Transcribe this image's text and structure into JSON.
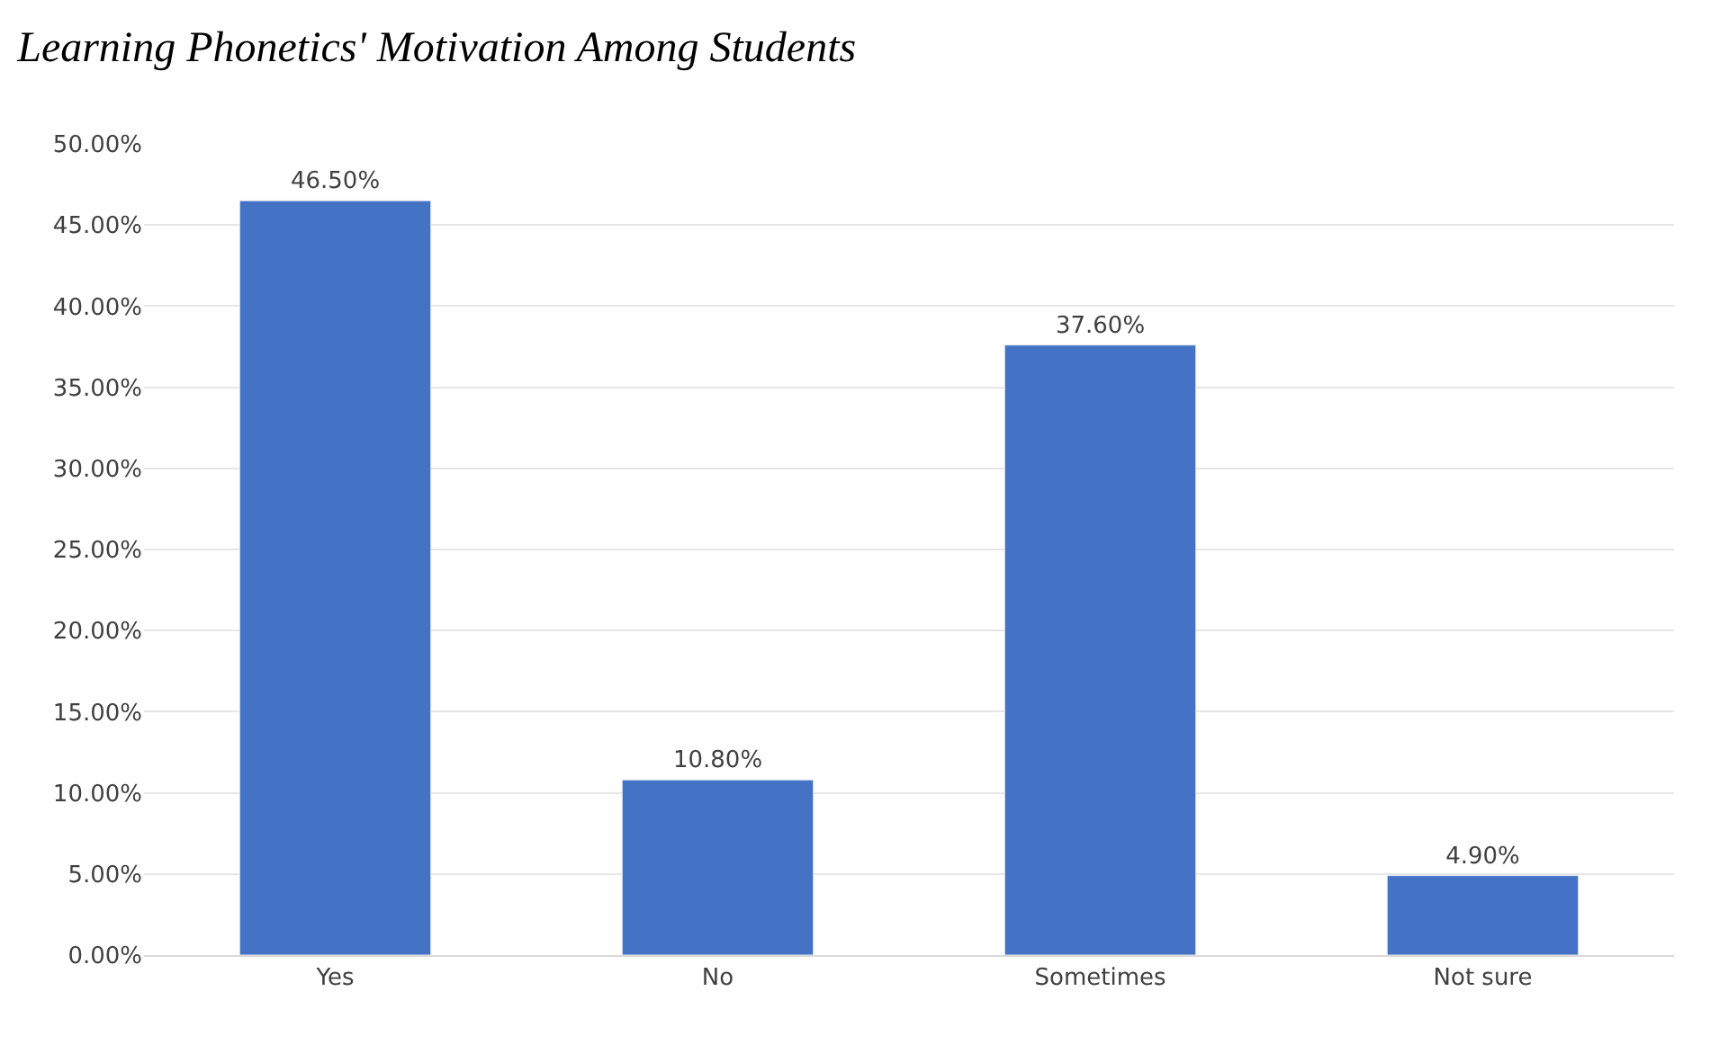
{
  "chart_data": {
    "type": "bar",
    "title": "Learning Phonetics' Motivation Among Students",
    "categories": [
      "Yes",
      "No",
      "Sometimes",
      "Not sure"
    ],
    "values": [
      46.5,
      10.8,
      37.6,
      4.9
    ],
    "value_labels": [
      "46.50%",
      "10.80%",
      "37.60%",
      "4.90%"
    ],
    "color": "#4472c4",
    "ylim": [
      0,
      50
    ],
    "yticks": [
      {
        "value": 0,
        "label": "0.00%"
      },
      {
        "value": 5,
        "label": "5.00%"
      },
      {
        "value": 10,
        "label": "10.00%"
      },
      {
        "value": 15,
        "label": "15.00%"
      },
      {
        "value": 20,
        "label": "20.00%"
      },
      {
        "value": 25,
        "label": "25.00%"
      },
      {
        "value": 30,
        "label": "30.00%"
      },
      {
        "value": 35,
        "label": "35.00%"
      },
      {
        "value": 40,
        "label": "40.00%"
      },
      {
        "value": 45,
        "label": "45.00%"
      },
      {
        "value": 50,
        "label": "50.00%"
      }
    ],
    "grid": "y"
  }
}
